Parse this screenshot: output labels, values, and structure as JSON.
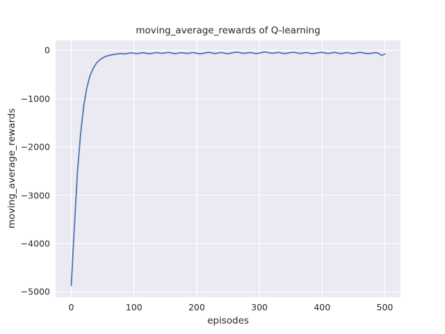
{
  "chart_data": {
    "type": "line",
    "title": "moving_average_rewards of Q-learning",
    "xlabel": "episodes",
    "ylabel": "moving_average_rewards",
    "xticks": [
      0,
      100,
      200,
      300,
      400,
      500
    ],
    "xticklabels": [
      "0",
      "100",
      "200",
      "300",
      "400",
      "500"
    ],
    "yticks": [
      0,
      -1000,
      -2000,
      -3000,
      -4000,
      -5000
    ],
    "yticklabels": [
      "0",
      "−1000",
      "−2000",
      "−3000",
      "−4000",
      "−5000"
    ],
    "xlim": [
      -25,
      525
    ],
    "ylim": [
      -5112,
      208
    ],
    "grid": true,
    "legend": "none",
    "plot_bg": "#eaeaf2",
    "grid_color": "#ffffff",
    "line_color": "#4c72b0",
    "series": [
      {
        "name": "Q-learning moving average reward",
        "x": [
          0,
          5,
          10,
          15,
          20,
          25,
          30,
          35,
          40,
          45,
          50,
          55,
          60,
          65,
          70,
          75,
          80,
          85,
          90,
          95,
          100,
          105,
          110,
          115,
          120,
          125,
          130,
          135,
          140,
          145,
          150,
          155,
          160,
          165,
          170,
          175,
          180,
          185,
          190,
          195,
          200,
          205,
          210,
          215,
          220,
          225,
          230,
          235,
          240,
          245,
          250,
          255,
          260,
          265,
          270,
          275,
          280,
          285,
          290,
          295,
          300,
          305,
          310,
          315,
          320,
          325,
          330,
          335,
          340,
          345,
          350,
          355,
          360,
          365,
          370,
          375,
          380,
          385,
          390,
          395,
          400,
          405,
          410,
          415,
          420,
          425,
          430,
          435,
          440,
          445,
          450,
          455,
          460,
          465,
          470,
          475,
          480,
          485,
          490,
          495,
          500
        ],
        "y": [
          -4870,
          -3620,
          -2480,
          -1700,
          -1130,
          -760,
          -520,
          -370,
          -265,
          -200,
          -155,
          -125,
          -103,
          -90,
          -80,
          -72,
          -66,
          -74,
          -60,
          -52,
          -58,
          -66,
          -55,
          -48,
          -60,
          -70,
          -57,
          -44,
          -52,
          -63,
          -50,
          -42,
          -55,
          -68,
          -58,
          -46,
          -54,
          -65,
          -52,
          -44,
          -58,
          -72,
          -60,
          -48,
          -40,
          -55,
          -66,
          -52,
          -45,
          -58,
          -70,
          -56,
          -42,
          -36,
          -50,
          -62,
          -54,
          -44,
          -56,
          -68,
          -55,
          -40,
          -34,
          -48,
          -60,
          -52,
          -42,
          -54,
          -66,
          -56,
          -44,
          -38,
          -52,
          -64,
          -55,
          -45,
          -58,
          -70,
          -58,
          -46,
          -40,
          -54,
          -64,
          -52,
          -42,
          -56,
          -68,
          -55,
          -44,
          -58,
          -66,
          -52,
          -40,
          -50,
          -62,
          -70,
          -56,
          -46,
          -58,
          -105,
          -75
        ]
      }
    ]
  }
}
